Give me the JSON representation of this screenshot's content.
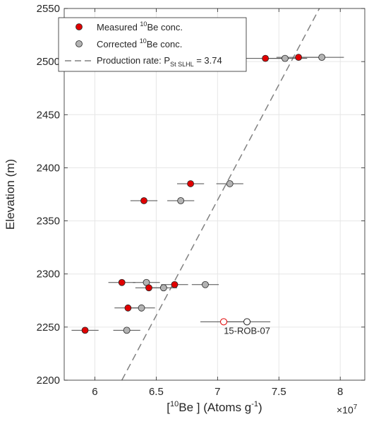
{
  "chart_data": {
    "type": "scatter",
    "xlabel_parts": [
      "[",
      "10",
      "Be ] (Atoms g",
      "-1",
      ")"
    ],
    "ylabel": "Elevation (m)",
    "x_multiplier": "×10",
    "x_multiplier_exp": "7",
    "xlim": [
      5.75,
      8.2
    ],
    "ylim": [
      2200,
      2550
    ],
    "xticks": [
      6,
      6.5,
      7,
      7.5,
      8
    ],
    "xtick_labels": [
      "6",
      "6.5",
      "7",
      "7.5",
      "8"
    ],
    "yticks": [
      2200,
      2250,
      2300,
      2350,
      2400,
      2450,
      2500,
      2550
    ],
    "ytick_labels": [
      "2200",
      "2250",
      "2300",
      "2350",
      "2400",
      "2450",
      "2500",
      "2550"
    ],
    "grid": true,
    "legend": {
      "position": "top-left",
      "entries": [
        {
          "parts": [
            "Measured ",
            "10",
            "Be conc."
          ]
        },
        {
          "parts": [
            "Corrected ",
            "10",
            "Be conc."
          ]
        },
        {
          "parts": [
            "Production rate: P",
            "St SLHL",
            " = 3.74"
          ]
        }
      ]
    },
    "colors": {
      "measured": "#e00000",
      "corrected": "#b3b3b3",
      "line": "#808080",
      "errorbar": "#4d4d4d"
    },
    "series": [
      {
        "name": "Measured 10Be conc.",
        "points": [
          {
            "x": 7.39,
            "y": 2503,
            "xerr": 0.18
          },
          {
            "x": 7.66,
            "y": 2504,
            "xerr": 0.18
          },
          {
            "x": 6.78,
            "y": 2385,
            "xerr": 0.11
          },
          {
            "x": 6.4,
            "y": 2369,
            "xerr": 0.11
          },
          {
            "x": 6.22,
            "y": 2292,
            "xerr": 0.11
          },
          {
            "x": 6.65,
            "y": 2290,
            "xerr": 0.11
          },
          {
            "x": 6.44,
            "y": 2287,
            "xerr": 0.11
          },
          {
            "x": 6.27,
            "y": 2268,
            "xerr": 0.11
          },
          {
            "x": 5.92,
            "y": 2247,
            "xerr": 0.11
          },
          {
            "x": 7.05,
            "y": 2255,
            "xerr": 0.19,
            "hollow": true
          }
        ]
      },
      {
        "name": "Corrected 10Be conc.",
        "points": [
          {
            "x": 7.55,
            "y": 2503,
            "xerr": 0.18
          },
          {
            "x": 7.85,
            "y": 2504,
            "xerr": 0.18
          },
          {
            "x": 7.1,
            "y": 2385,
            "xerr": 0.11
          },
          {
            "x": 6.7,
            "y": 2369,
            "xerr": 0.11
          },
          {
            "x": 6.42,
            "y": 2292,
            "xerr": 0.11
          },
          {
            "x": 6.9,
            "y": 2290,
            "xerr": 0.11
          },
          {
            "x": 6.56,
            "y": 2287,
            "xerr": 0.11
          },
          {
            "x": 6.38,
            "y": 2268,
            "xerr": 0.11
          },
          {
            "x": 6.26,
            "y": 2247,
            "xerr": 0.11
          },
          {
            "x": 7.24,
            "y": 2255,
            "xerr": 0.19,
            "hollow": true
          }
        ]
      },
      {
        "name": "Production rate: PSt SLHL = 3.74",
        "line": [
          {
            "x": 6.22,
            "y": 2200
          },
          {
            "x": 7.83,
            "y": 2550
          }
        ]
      }
    ],
    "annotations": [
      {
        "text": "15-ROB-07",
        "x": 7.24,
        "y": 2255
      }
    ]
  }
}
